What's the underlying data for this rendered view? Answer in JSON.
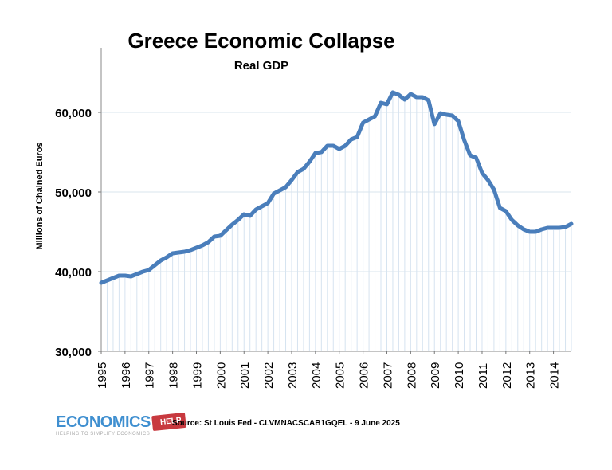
{
  "chart_data": {
    "type": "line",
    "title": "Greece Economic Collapse",
    "subtitle": "Real GDP",
    "xlabel": "",
    "ylabel": "Millions of Chained Euros",
    "ylim": [
      30000,
      70000
    ],
    "yticks": [
      "30,000",
      "40,000",
      "50,000",
      "60,000"
    ],
    "ytick_values": [
      30000,
      40000,
      50000,
      60000
    ],
    "xticks": [
      "1995",
      "1996",
      "1997",
      "1998",
      "1999",
      "2000",
      "2001",
      "2002",
      "2003",
      "2004",
      "2005",
      "2006",
      "2007",
      "2008",
      "2009",
      "2010",
      "2011",
      "2012",
      "2013",
      "2014"
    ],
    "frequency": "quarterly",
    "x_start": "1995 Q1",
    "grid": "horizontal and vertical",
    "series": [
      {
        "color": "#4a7ebb",
        "values": [
          38600,
          38900,
          39200,
          39500,
          39500,
          39400,
          39700,
          40000,
          40200,
          40800,
          41400,
          41800,
          42300,
          42400,
          42500,
          42700,
          43000,
          43300,
          43700,
          44400,
          44500,
          45200,
          45900,
          46500,
          47200,
          47000,
          47800,
          48200,
          48600,
          49800,
          50200,
          50600,
          51500,
          52500,
          52900,
          53800,
          54900,
          55000,
          55800,
          55800,
          55400,
          55800,
          56600,
          56900,
          58700,
          59100,
          59500,
          61200,
          61000,
          62500,
          62200,
          61600,
          62300,
          61900,
          61900,
          61500,
          58500,
          59900,
          59700,
          59600,
          58900,
          56500,
          54600,
          54300,
          52400,
          51500,
          50300,
          48000,
          47600,
          46500,
          45800,
          45300,
          45000,
          45000,
          45300,
          45500,
          45500,
          45500,
          45600,
          46000
        ]
      }
    ]
  },
  "footer": {
    "source": "Source: St Louis Fed - CLVMNACSCAB1GQEL - 9 June 2025",
    "logo_main": "ECONOMICS",
    "logo_help": "HELP",
    "logo_tagline": "HELPING TO SIMPLIFY ECONOMICS"
  }
}
